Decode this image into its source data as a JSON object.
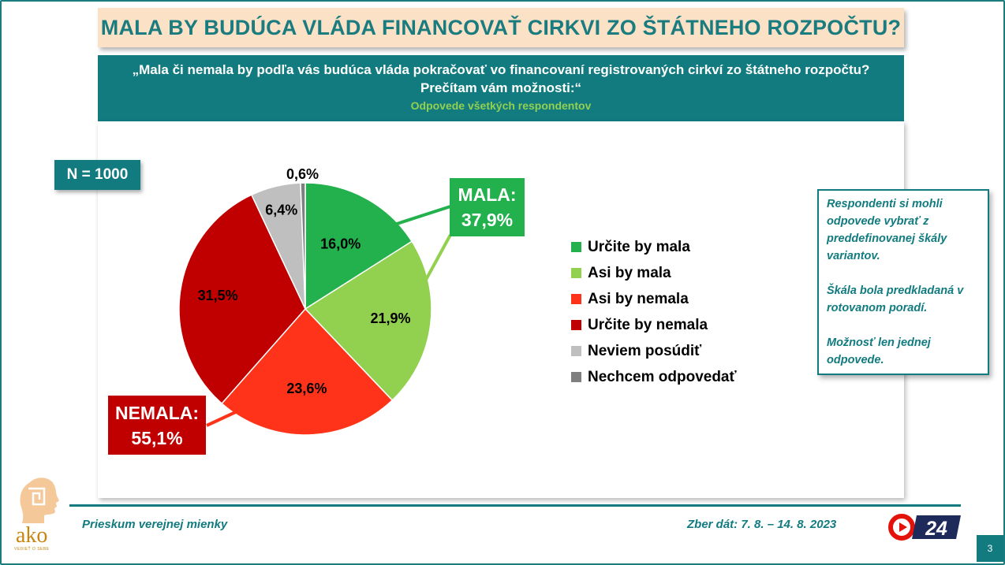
{
  "title": "MALA BY BUDÚCA VLÁDA FINANCOVAŤ CIRKVI ZO ŠTÁTNEHO ROZPOČTU?",
  "question": "„Mala či nemala by podľa vás budúca vláda pokračovať vo financovaní registrovaných cirkví zo štátneho rozpočtu? Prečítam vám možnosti:“",
  "base": "Odpovede všetkých respondentov",
  "sample_size": "N = 1000",
  "chart_data": {
    "type": "pie",
    "slices": [
      {
        "label": "Určite by mala",
        "value": 16.0,
        "display": "16,0%",
        "color": "#22b14c"
      },
      {
        "label": "Asi by mala",
        "value": 21.9,
        "display": "21,9%",
        "color": "#92d050"
      },
      {
        "label": "Asi by nemala",
        "value": 23.6,
        "display": "23,6%",
        "color": "#ff3319"
      },
      {
        "label": "Určite by nemala",
        "value": 31.5,
        "display": "31,5%",
        "color": "#c00000"
      },
      {
        "label": "Neviem posúdiť",
        "value": 6.4,
        "display": "6,4%",
        "color": "#bfbfbf"
      },
      {
        "label": "Nechcem odpovedať",
        "value": 0.6,
        "display": "0,6%",
        "color": "#7f7f7f"
      }
    ],
    "groups": [
      {
        "label": "MALA:",
        "value": "37,9%",
        "color": "#22b14c"
      },
      {
        "label": "NEMALA:",
        "value": "55,1%",
        "color": "#c00000"
      }
    ],
    "legend_position": "right"
  },
  "note": {
    "p1": "Respondenti si mohli odpovede vybrať z preddefinovanej škály variantov.",
    "p2": "Škála bola predkladaná v rotovanom poradí.",
    "p3": "Možnosť len jednej odpovede."
  },
  "footer": {
    "left": "Prieskum verejnej mienky",
    "right": "Zber dát: 7. 8. – 14. 8. 2023",
    "page": "3"
  },
  "logo": {
    "ako": "ako",
    "ako_tagline": "VEDIEŤ O SEBE",
    "tv": "24"
  },
  "colors": {
    "teal": "#117b80",
    "title_bg": "#fbe2c6",
    "light_green": "#92d050"
  }
}
